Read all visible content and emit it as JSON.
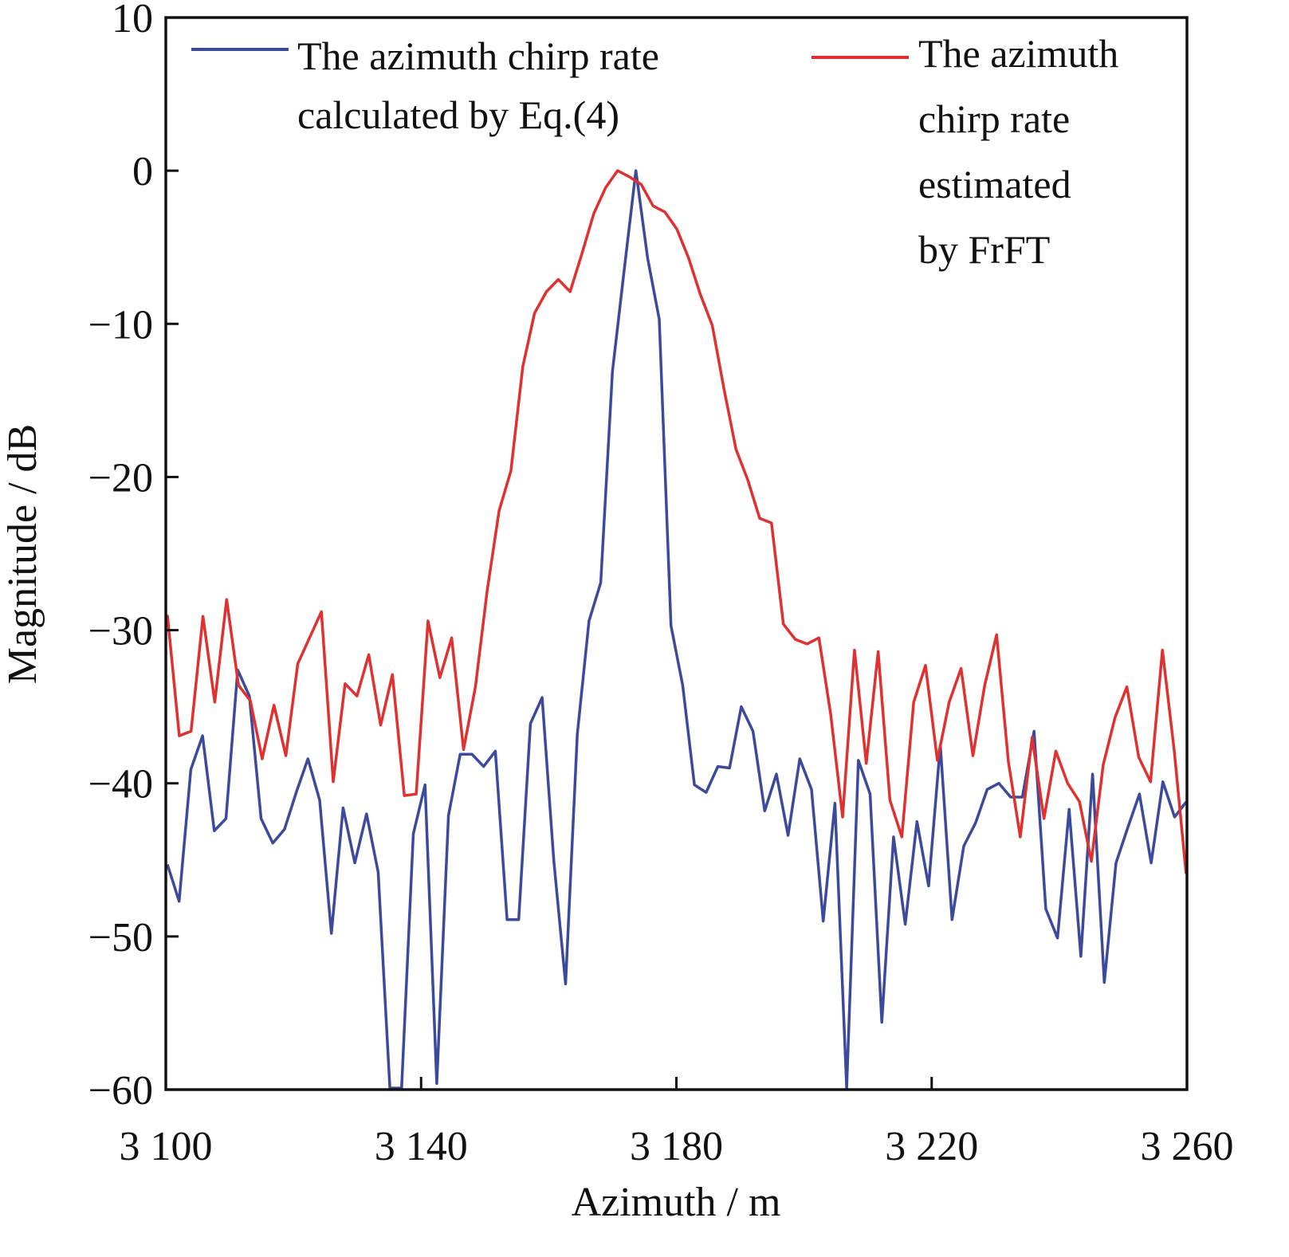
{
  "chart_data": {
    "type": "line",
    "title": "",
    "xlabel": "Azimuth / m",
    "ylabel": "Magnitude / dB",
    "xlim": [
      3100,
      3260
    ],
    "ylim": [
      -60,
      10
    ],
    "xticks": [
      3100,
      3140,
      3180,
      3220,
      3260
    ],
    "xtick_labels": [
      "3 100",
      "3 140",
      "3 180",
      "3 220",
      "3 260"
    ],
    "yticks": [
      10,
      0,
      -10,
      -20,
      -30,
      -40,
      -50,
      -60
    ],
    "ytick_labels": [
      "10",
      "0",
      "−10",
      "−20",
      "−30",
      "−40",
      "−50",
      "−60"
    ],
    "grid": false,
    "legend_placement": "top",
    "series": [
      {
        "name": "The azimuth chirp rate calculated by Eq.(4)",
        "legend_lines": [
          "The azimuth chirp rate",
          "calculated by Eq.(4)"
        ],
        "color": "#3b4a9c",
        "x_start": 3100.25,
        "x_step": 1.835,
        "values": [
          -45.3,
          -47.7,
          -39.1,
          -36.9,
          -43.1,
          -42.3,
          -32.6,
          -34.3,
          -42.3,
          -43.9,
          -43.0,
          -40.6,
          -38.4,
          -41.1,
          -49.8,
          -41.6,
          -45.2,
          -42.0,
          -45.8,
          -59.9,
          -59.9,
          -43.3,
          -40.1,
          -59.6,
          -42.1,
          -38.1,
          -38.1,
          -38.9,
          -37.9,
          -48.9,
          -48.9,
          -36.1,
          -34.4,
          -45.1,
          -53.1,
          -36.8,
          -29.4,
          -26.9,
          -13.1,
          -6.5,
          0,
          -5.7,
          -9.7,
          -29.7,
          -33.6,
          -40.1,
          -40.6,
          -38.9,
          -39.0,
          -35.0,
          -36.6,
          -41.8,
          -39.4,
          -43.4,
          -38.4,
          -40.4,
          -49.0,
          -41.3,
          -59.9,
          -38.5,
          -40.7,
          -55.6,
          -43.5,
          -49.2,
          -42.5,
          -46.7,
          -37.5,
          -48.9,
          -44.1,
          -42.6,
          -40.4,
          -40.0,
          -40.9,
          -40.9,
          -36.6,
          -48.2,
          -50.1,
          -41.7,
          -51.3,
          -39.4,
          -53.0,
          -45.2,
          -42.9,
          -40.7,
          -45.2,
          -39.9,
          -42.2,
          -41.2
        ]
      },
      {
        "name": "The azimuth chirp rate estimated by FrFT",
        "legend_lines": [
          "The azimuth",
          "chirp rate",
          "estimated",
          "by FrFT"
        ],
        "color": "#e0302f",
        "x_start": 3100.25,
        "x_step": 1.856,
        "values": [
          -29.0,
          -36.9,
          -36.6,
          -29.1,
          -34.7,
          -28.0,
          -33.6,
          -34.6,
          -38.4,
          -34.9,
          -38.2,
          -32.2,
          -30.5,
          -28.8,
          -39.9,
          -33.5,
          -34.3,
          -31.6,
          -36.2,
          -32.9,
          -40.8,
          -40.7,
          -29.4,
          -33.1,
          -30.5,
          -37.8,
          -33.7,
          -27.4,
          -22.2,
          -19.6,
          -12.8,
          -9.3,
          -7.9,
          -7.1,
          -7.9,
          -5.4,
          -2.8,
          -1.1,
          0,
          -0.4,
          -0.9,
          -2.3,
          -2.7,
          -3.8,
          -5.7,
          -8.1,
          -10.1,
          -14.3,
          -18.2,
          -20.2,
          -22.7,
          -23.0,
          -29.6,
          -30.6,
          -30.9,
          -30.5,
          -35.5,
          -42.2,
          -31.3,
          -38.7,
          -31.4,
          -41.1,
          -43.5,
          -34.7,
          -32.3,
          -38.5,
          -34.7,
          -32.5,
          -38.2,
          -33.6,
          -30.3,
          -38.6,
          -43.5,
          -37.0,
          -42.3,
          -37.9,
          -40.0,
          -41.2,
          -45.1,
          -38.8,
          -35.7,
          -33.7,
          -38.3,
          -39.9,
          -31.3,
          -37.9,
          -45.9
        ]
      }
    ]
  }
}
